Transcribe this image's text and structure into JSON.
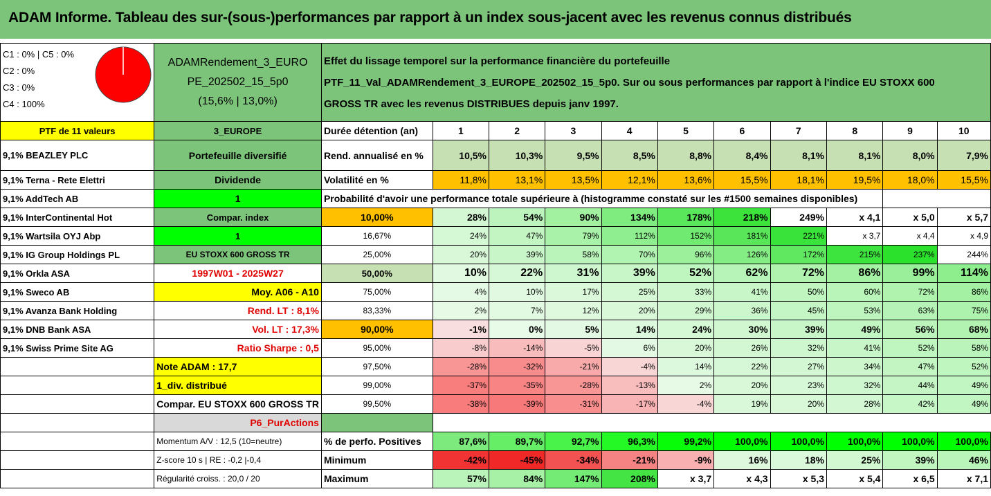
{
  "title": "ADAM Informe. Tableau des sur-(sous-)performances par rapport à un index sous-jacent avec les revenus connus distribués",
  "classes": [
    "C1 : 0% | C5 : 0%",
    "C2 : 0%",
    "C3 : 0%",
    "C4 : 100%"
  ],
  "pie": {
    "color": "#ff0000",
    "share": 1.0
  },
  "portfolio_id": [
    "ADAMRendement_3_EURO",
    "PE_202502_15_5p0",
    "(15,6% | 13,0%)"
  ],
  "description": [
    "Effet du lissage temporel sur la performance financière du portefeuille",
    "PTF_11_Val_ADAMRendement_3_EUROPE_202502_15_5p0. Sur ou sous performances par rapport à l'indice EU STOXX 600",
    "GROSS TR avec les revenus DISTRIBUES depuis janv 1997."
  ],
  "ptf_label": "PTF de 11 valeurs",
  "holdings": [
    "9,1% BEAZLEY PLC",
    "9,1% Terna - Rete Elettri",
    "9,1% AddTech AB",
    "9,1% InterContinental Hot",
    "9,1% Wartsila OYJ Abp",
    "9,1% IG Group Holdings PL",
    "9,1% Orkla ASA",
    "9,1% Sweco AB",
    "9,1% Avanza Bank Holding",
    "9,1% DNB Bank ASA",
    "9,1% Swiss Prime Site AG"
  ],
  "mid": [
    "3_EUROPE",
    "Portefeuille diversifié",
    "Dividende",
    "1",
    "Compar. index",
    "1",
    "EU STOXX 600 GROSS TR",
    "1997W01 - 2025W27",
    "Moy. A06 - A10",
    "Rend. LT : 8,1%",
    "Vol. LT : 17,3%",
    "Ratio Sharpe : 0,5",
    "Note ADAM : 17,7",
    "1_div. distribué",
    "Compar. EU STOXX 600 GROSS TR",
    "P6_PurActions"
  ],
  "bottom_left": [
    "Momentum A/V : 12,5 (10=neutre)",
    "Z-score 10 s | RE : -0,2 |-0,4",
    "Régularité croiss. : 20,0 / 20"
  ],
  "durations_label": "Durée détention (an)",
  "durations": [
    "1",
    "2",
    "3",
    "4",
    "5",
    "6",
    "7",
    "8",
    "9",
    "10"
  ],
  "rend_label": "Rend. annualisé en %",
  "rend": [
    "10,5%",
    "10,3%",
    "9,5%",
    "8,5%",
    "8,8%",
    "8,4%",
    "8,1%",
    "8,1%",
    "8,0%",
    "7,9%"
  ],
  "vol_label": "Volatilité en %",
  "vol": [
    "11,8%",
    "13,1%",
    "13,5%",
    "12,1%",
    "13,6%",
    "15,5%",
    "18,1%",
    "19,5%",
    "18,0%",
    "15,5%"
  ],
  "prob_title": "Probabilité d'avoir une performance totale supérieure à (histogramme constaté sur les #1500 semaines disponibles)",
  "prob_rows": [
    {
      "p": "10,00%",
      "v": [
        "28%",
        "54%",
        "90%",
        "134%",
        "178%",
        "218%",
        "249%",
        "x 4,1",
        "x 5,0",
        "x 5,7"
      ]
    },
    {
      "p": "16,67%",
      "v": [
        "24%",
        "47%",
        "79%",
        "112%",
        "152%",
        "181%",
        "221%",
        "x 3,7",
        "x 4,4",
        "x 4,9"
      ]
    },
    {
      "p": "25,00%",
      "v": [
        "20%",
        "39%",
        "58%",
        "70%",
        "96%",
        "126%",
        "172%",
        "215%",
        "237%",
        "244%"
      ]
    },
    {
      "p": "50,00%",
      "v": [
        "10%",
        "22%",
        "31%",
        "39%",
        "52%",
        "62%",
        "72%",
        "86%",
        "99%",
        "114%"
      ]
    },
    {
      "p": "75,00%",
      "v": [
        "4%",
        "10%",
        "17%",
        "25%",
        "33%",
        "41%",
        "50%",
        "60%",
        "72%",
        "86%"
      ]
    },
    {
      "p": "83,33%",
      "v": [
        "2%",
        "7%",
        "12%",
        "20%",
        "29%",
        "36%",
        "45%",
        "53%",
        "63%",
        "75%"
      ]
    },
    {
      "p": "90,00%",
      "v": [
        "-1%",
        "0%",
        "5%",
        "14%",
        "24%",
        "30%",
        "39%",
        "49%",
        "56%",
        "68%"
      ]
    },
    {
      "p": "95,00%",
      "v": [
        "-8%",
        "-14%",
        "-5%",
        "6%",
        "20%",
        "26%",
        "32%",
        "41%",
        "52%",
        "58%"
      ]
    },
    {
      "p": "97,50%",
      "v": [
        "-28%",
        "-32%",
        "-21%",
        "-4%",
        "14%",
        "22%",
        "27%",
        "34%",
        "47%",
        "52%"
      ]
    },
    {
      "p": "99,00%",
      "v": [
        "-37%",
        "-35%",
        "-28%",
        "-13%",
        "2%",
        "20%",
        "23%",
        "32%",
        "44%",
        "49%"
      ]
    },
    {
      "p": "99,50%",
      "v": [
        "-38%",
        "-39%",
        "-31%",
        "-17%",
        "-4%",
        "19%",
        "20%",
        "28%",
        "42%",
        "49%"
      ]
    }
  ],
  "pos_label": "% de perfo. Positives",
  "pos": [
    "87,6%",
    "89,7%",
    "92,7%",
    "96,3%",
    "99,2%",
    "100,0%",
    "100,0%",
    "100,0%",
    "100,0%",
    "100,0%"
  ],
  "min_label": "Minimum",
  "min": [
    "-42%",
    "-45%",
    "-34%",
    "-21%",
    "-9%",
    "16%",
    "18%",
    "25%",
    "39%",
    "46%"
  ],
  "max_label": "Maximum",
  "max": [
    "57%",
    "84%",
    "147%",
    "208%",
    "x 3,7",
    "x 4,3",
    "x 5,3",
    "x 5,4",
    "x 6,5",
    "x 7,1"
  ],
  "colors": {
    "header_green": "#7dc47b",
    "bright_green": "#00ff00",
    "yellow": "#ffff00",
    "orange": "#ffc000",
    "red_text": "#e00000",
    "neg_red": "#f8696b"
  }
}
